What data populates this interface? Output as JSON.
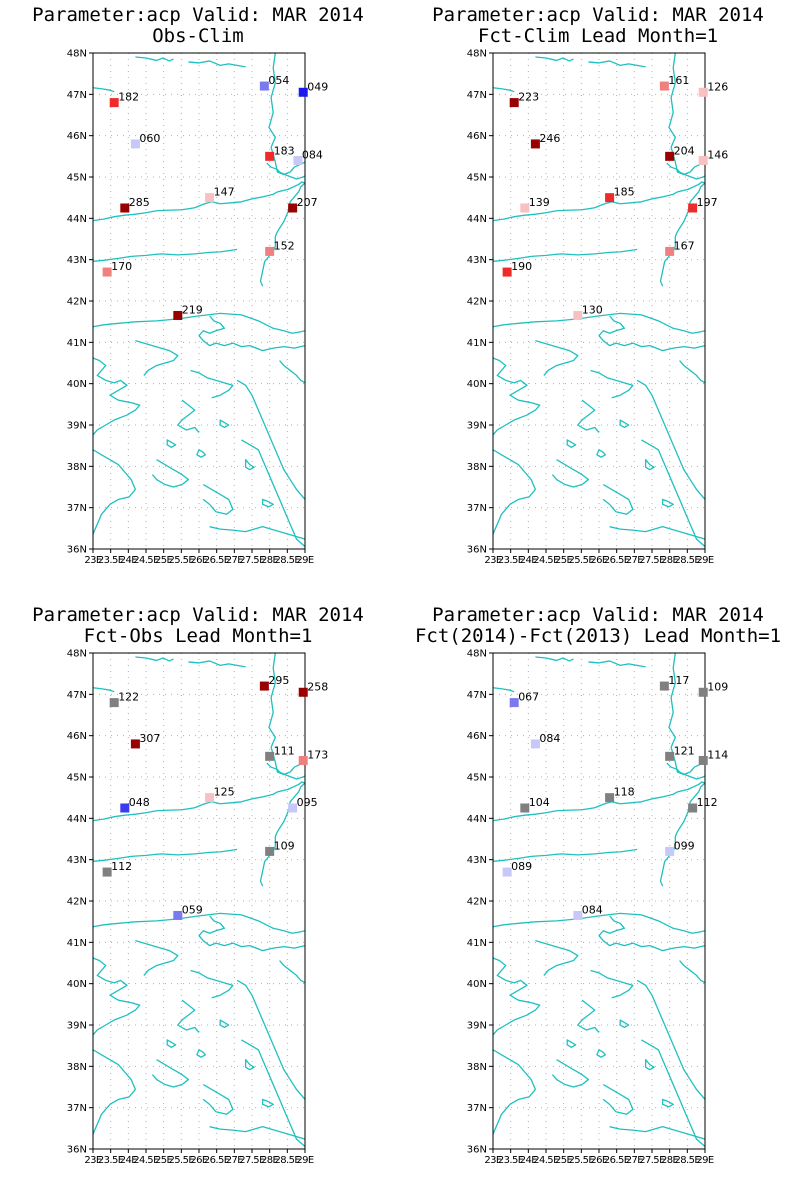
{
  "colors": {
    "coast": "#20c0c0",
    "scale": {
      "dark_blue": "#1a1aee",
      "blue": "#3b3bee",
      "mid_blue": "#7a7aee",
      "light_blue": "#c8c8f8",
      "gray": "#808080",
      "light_red": "#f8c0c0",
      "pink": "#f08080",
      "red": "#ee2a2a",
      "dark_red": "#990000"
    }
  },
  "lat_labels": [
    "48N",
    "47N",
    "46N",
    "45N",
    "44N",
    "43N",
    "42N",
    "41N",
    "40N",
    "39N",
    "38N",
    "37N",
    "36N"
  ],
  "lon_labels": [
    "23E",
    "23.5E",
    "24E",
    "24.5E",
    "25E",
    "25.5E",
    "26E",
    "26.5E",
    "27E",
    "27.5E",
    "28E",
    "28.5E",
    "29E"
  ],
  "lon_range": [
    23,
    29
  ],
  "lat_range": [
    36,
    48
  ],
  "panels": [
    {
      "title1": "Parameter:acp Valid: MAR 2014",
      "title2": "Obs-Clim",
      "stations": [
        {
          "lon": 23.6,
          "lat": 46.8,
          "label": "182",
          "color": "red"
        },
        {
          "lon": 24.2,
          "lat": 45.8,
          "label": "060",
          "color": "light_blue"
        },
        {
          "lon": 28.0,
          "lat": 45.5,
          "label": "183",
          "color": "red"
        },
        {
          "lon": 28.8,
          "lat": 45.4,
          "label": "084",
          "color": "light_blue"
        },
        {
          "lon": 26.3,
          "lat": 44.5,
          "label": "147",
          "color": "light_red"
        },
        {
          "lon": 23.9,
          "lat": 44.25,
          "label": "285",
          "color": "dark_red"
        },
        {
          "lon": 28.65,
          "lat": 44.25,
          "label": "207",
          "color": "dark_red"
        },
        {
          "lon": 27.85,
          "lat": 47.2,
          "label": "054",
          "color": "mid_blue"
        },
        {
          "lon": 28.95,
          "lat": 47.05,
          "label": "049",
          "color": "dark_blue"
        },
        {
          "lon": 28.0,
          "lat": 43.2,
          "label": "152",
          "color": "pink"
        },
        {
          "lon": 23.4,
          "lat": 42.7,
          "label": "170",
          "color": "pink"
        },
        {
          "lon": 25.4,
          "lat": 41.65,
          "label": "219",
          "color": "dark_red"
        }
      ]
    },
    {
      "title1": "Parameter:acp Valid: MAR 2014",
      "title2": "Fct-Clim Lead Month=1",
      "stations": [
        {
          "lon": 23.6,
          "lat": 46.8,
          "label": "223",
          "color": "dark_red"
        },
        {
          "lon": 24.2,
          "lat": 45.8,
          "label": "246",
          "color": "dark_red"
        },
        {
          "lon": 28.0,
          "lat": 45.5,
          "label": "204",
          "color": "dark_red"
        },
        {
          "lon": 28.95,
          "lat": 45.4,
          "label": "146",
          "color": "light_red"
        },
        {
          "lon": 26.3,
          "lat": 44.5,
          "label": "185",
          "color": "red"
        },
        {
          "lon": 23.9,
          "lat": 44.25,
          "label": "139",
          "color": "light_red"
        },
        {
          "lon": 28.65,
          "lat": 44.25,
          "label": "197",
          "color": "red"
        },
        {
          "lon": 27.85,
          "lat": 47.2,
          "label": "161",
          "color": "pink"
        },
        {
          "lon": 28.95,
          "lat": 47.05,
          "label": "126",
          "color": "light_red"
        },
        {
          "lon": 28.0,
          "lat": 43.2,
          "label": "167",
          "color": "pink"
        },
        {
          "lon": 23.4,
          "lat": 42.7,
          "label": "190",
          "color": "red"
        },
        {
          "lon": 25.4,
          "lat": 41.65,
          "label": "130",
          "color": "light_red"
        }
      ]
    },
    {
      "title1": "Parameter:acp Valid: MAR 2014",
      "title2": "Fct-Obs Lead Month=1",
      "stations": [
        {
          "lon": 23.6,
          "lat": 46.8,
          "label": "122",
          "color": "gray"
        },
        {
          "lon": 24.2,
          "lat": 45.8,
          "label": "307",
          "color": "dark_red"
        },
        {
          "lon": 28.0,
          "lat": 45.5,
          "label": "111",
          "color": "gray"
        },
        {
          "lon": 28.95,
          "lat": 45.4,
          "label": "173",
          "color": "pink"
        },
        {
          "lon": 26.3,
          "lat": 44.5,
          "label": "125",
          "color": "light_red"
        },
        {
          "lon": 23.9,
          "lat": 44.25,
          "label": "048",
          "color": "blue"
        },
        {
          "lon": 28.65,
          "lat": 44.25,
          "label": "095",
          "color": "light_blue"
        },
        {
          "lon": 27.85,
          "lat": 47.2,
          "label": "295",
          "color": "dark_red"
        },
        {
          "lon": 28.95,
          "lat": 47.05,
          "label": "258",
          "color": "dark_red"
        },
        {
          "lon": 28.0,
          "lat": 43.2,
          "label": "109",
          "color": "gray"
        },
        {
          "lon": 23.4,
          "lat": 42.7,
          "label": "112",
          "color": "gray"
        },
        {
          "lon": 25.4,
          "lat": 41.65,
          "label": "059",
          "color": "mid_blue"
        }
      ]
    },
    {
      "title1": "Parameter:acp Valid: MAR 2014",
      "title2": "Fct(2014)-Fct(2013) Lead Month=1",
      "stations": [
        {
          "lon": 23.6,
          "lat": 46.8,
          "label": "067",
          "color": "mid_blue"
        },
        {
          "lon": 24.2,
          "lat": 45.8,
          "label": "084",
          "color": "light_blue"
        },
        {
          "lon": 28.0,
          "lat": 45.5,
          "label": "121",
          "color": "gray"
        },
        {
          "lon": 28.95,
          "lat": 45.4,
          "label": "114",
          "color": "gray"
        },
        {
          "lon": 26.3,
          "lat": 44.5,
          "label": "118",
          "color": "gray"
        },
        {
          "lon": 23.9,
          "lat": 44.25,
          "label": "104",
          "color": "gray"
        },
        {
          "lon": 28.65,
          "lat": 44.25,
          "label": "112",
          "color": "gray"
        },
        {
          "lon": 27.85,
          "lat": 47.2,
          "label": "117",
          "color": "gray"
        },
        {
          "lon": 28.95,
          "lat": 47.05,
          "label": "109",
          "color": "gray"
        },
        {
          "lon": 28.0,
          "lat": 43.2,
          "label": "099",
          "color": "light_blue"
        },
        {
          "lon": 23.4,
          "lat": 42.7,
          "label": "089",
          "color": "light_blue"
        },
        {
          "lon": 25.4,
          "lat": 41.65,
          "label": "084",
          "color": "light_blue"
        }
      ]
    }
  ]
}
